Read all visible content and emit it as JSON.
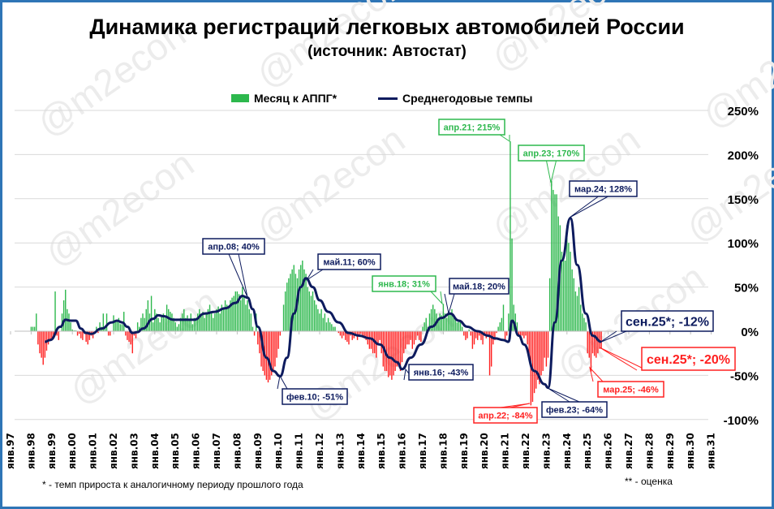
{
  "watermark": "@m2econ",
  "chart_data": {
    "type": "bar+line",
    "title": "Динамика регистраций легковых автомобилей России",
    "subtitle": "(источник: Автостат)",
    "legend": {
      "position": "top",
      "bar_label": "Месяц к АППГ*",
      "line_label": "Среднегодовые темпы"
    },
    "colors": {
      "positive_bar": "#2db84d",
      "negative_bar": "#ff2020",
      "line": "#0d1b5e",
      "grid": "#d9d9d9",
      "frame": "#2e75b6"
    },
    "y_axis": {
      "range": [
        -1.0,
        2.5
      ],
      "ticks": [
        "-100%",
        "-50%",
        "0%",
        "50%",
        "100%",
        "150%",
        "200%",
        "250%"
      ],
      "position": "right",
      "grid": true
    },
    "x_axis": {
      "ticks": [
        "янв.97",
        "янв.98",
        "янв.99",
        "янв.00",
        "янв.01",
        "янв.02",
        "янв.03",
        "янв.04",
        "янв.05",
        "янв.06",
        "янв.07",
        "янв.08",
        "янв.09",
        "янв.10",
        "янв.11",
        "янв.12",
        "янв.13",
        "янв.14",
        "янв.15",
        "янв.16",
        "янв.17",
        "янв.18",
        "янв.19",
        "янв.20",
        "янв.21",
        "янв.22",
        "янв.23",
        "янв.24",
        "янв.25",
        "янв.26",
        "янв.27",
        "янв.28",
        "янв.29",
        "янв.30",
        "янв.31"
      ]
    },
    "bars_monthly_pct": {
      "1998": [
        5,
        5,
        5,
        20,
        -15,
        -25,
        -30,
        -38,
        -30,
        -22,
        -15,
        -10
      ],
      "1999": [
        -8,
        -5,
        45,
        -5,
        -10,
        0,
        20,
        35,
        47,
        25,
        20,
        10
      ],
      "2000": [
        2,
        1,
        1,
        -5,
        -3,
        -8,
        -10,
        -3,
        -12,
        -15,
        -10,
        -5
      ],
      "2001": [
        -8,
        -2,
        5,
        -2,
        10,
        5,
        20,
        5,
        20,
        -5,
        -5,
        0
      ],
      "2002": [
        18,
        12,
        12,
        15,
        8,
        8,
        22,
        -5,
        -10,
        -12,
        -15,
        -25
      ],
      "2003": [
        -5,
        -8,
        10,
        5,
        15,
        20,
        15,
        25,
        35,
        20,
        40,
        10
      ],
      "2004": [
        25,
        20,
        15,
        10,
        18,
        20,
        15,
        30,
        25,
        22,
        20,
        15
      ],
      "2005": [
        10,
        5,
        8,
        15,
        20,
        25,
        15,
        18,
        12,
        20,
        8,
        15
      ],
      "2006": [
        15,
        20,
        25,
        18,
        22,
        15,
        20,
        25,
        30,
        22,
        15,
        20
      ],
      "2007": [
        25,
        28,
        20,
        30,
        25,
        35,
        30,
        28,
        35,
        38,
        40,
        45
      ],
      "2008": [
        45,
        42,
        35,
        50,
        40,
        30,
        35,
        25,
        20,
        5,
        -5,
        20
      ],
      "2009": [
        -15,
        -25,
        -40,
        -45,
        -50,
        -55,
        -58,
        -55,
        -50,
        -45,
        -40,
        -30
      ],
      "2010": [
        -20,
        -5,
        0,
        30,
        45,
        55,
        60,
        65,
        70,
        75,
        65,
        60
      ],
      "2011": [
        70,
        75,
        80,
        70,
        65,
        50,
        45,
        40,
        45,
        35,
        30,
        25
      ],
      "2012": [
        20,
        25,
        15,
        20,
        10,
        15,
        10,
        8,
        5,
        5,
        0,
        -2
      ],
      "2013": [
        -5,
        -8,
        -5,
        -10,
        -12,
        -15,
        -5,
        -10,
        -8,
        -5,
        -10,
        -5
      ],
      "2014": [
        -3,
        -5,
        -8,
        -10,
        -15,
        -20,
        -20,
        -25,
        -25,
        -30,
        -15,
        -10
      ],
      "2015": [
        -25,
        -40,
        -45,
        -45,
        -52,
        -50,
        -55,
        -50,
        -45,
        -40,
        -40,
        -45
      ],
      "2016": [
        -35,
        -25,
        -20,
        -15,
        -15,
        -10,
        -20,
        -15,
        -10,
        -5,
        -10,
        -12
      ],
      "2017": [
        5,
        10,
        15,
        5,
        20,
        25,
        30,
        25,
        20,
        15,
        20,
        18
      ],
      "2018": [
        31,
        20,
        15,
        22,
        20,
        25,
        18,
        15,
        10,
        12,
        10,
        5
      ],
      "2019": [
        -5,
        -10,
        -8,
        2,
        -5,
        -20,
        -15,
        -8,
        -10,
        -5,
        -10,
        -15
      ],
      "2020": [
        -5,
        -8,
        -5,
        -50,
        -40,
        -15,
        -10,
        -2,
        5,
        10,
        15,
        30
      ],
      "2021": [
        -10,
        -5,
        20,
        215,
        105,
        30,
        20,
        10,
        -5,
        -10,
        -5,
        -8
      ],
      "2022": [
        -5,
        -15,
        -30,
        -84,
        -80,
        -70,
        -65,
        -55,
        -60,
        -50,
        -45,
        -30
      ],
      "2023": [
        -40,
        -30,
        60,
        170,
        160,
        155,
        155,
        130,
        120,
        90,
        85,
        80
      ],
      "2024": [
        120,
        100,
        90,
        70,
        60,
        45,
        40,
        50,
        30,
        20,
        15,
        10
      ],
      "2025": [
        -25,
        -30,
        -46,
        -25,
        -28,
        -30,
        -25,
        -20,
        -20
      ]
    },
    "line_points_pct": [
      [
        "1998-09",
        -12
      ],
      [
        "1998-12",
        -10
      ],
      [
        "1999-06",
        5
      ],
      [
        "1999-09",
        13
      ],
      [
        "1999-12",
        12
      ],
      [
        "2000-03",
        12
      ],
      [
        "2000-06",
        3
      ],
      [
        "2000-09",
        -2
      ],
      [
        "2000-12",
        -3
      ],
      [
        "2001-06",
        3
      ],
      [
        "2001-12",
        10
      ],
      [
        "2002-03",
        12
      ],
      [
        "2002-06",
        10
      ],
      [
        "2002-09",
        5
      ],
      [
        "2002-12",
        -2
      ],
      [
        "2003-03",
        -1
      ],
      [
        "2003-06",
        3
      ],
      [
        "2003-12",
        14
      ],
      [
        "2004-03",
        18
      ],
      [
        "2004-06",
        17
      ],
      [
        "2004-12",
        13
      ],
      [
        "2005-06",
        13
      ],
      [
        "2005-12",
        13
      ],
      [
        "2006-06",
        20
      ],
      [
        "2006-12",
        22
      ],
      [
        "2007-06",
        26
      ],
      [
        "2007-12",
        32
      ],
      [
        "2008-04",
        40
      ],
      [
        "2008-07",
        38
      ],
      [
        "2008-10",
        25
      ],
      [
        "2009-01",
        5
      ],
      [
        "2009-06",
        -30
      ],
      [
        "2009-10",
        -45
      ],
      [
        "2010-02",
        -51
      ],
      [
        "2010-06",
        -30
      ],
      [
        "2010-10",
        20
      ],
      [
        "2011-02",
        50
      ],
      [
        "2011-05",
        60
      ],
      [
        "2011-09",
        50
      ],
      [
        "2012-01",
        35
      ],
      [
        "2012-06",
        22
      ],
      [
        "2012-12",
        10
      ],
      [
        "2013-06",
        -2
      ],
      [
        "2013-12",
        -5
      ],
      [
        "2014-06",
        -8
      ],
      [
        "2014-12",
        -15
      ],
      [
        "2015-06",
        -30
      ],
      [
        "2015-10",
        -35
      ],
      [
        "2016-01",
        -43
      ],
      [
        "2016-06",
        -30
      ],
      [
        "2016-12",
        -15
      ],
      [
        "2017-06",
        5
      ],
      [
        "2017-12",
        15
      ],
      [
        "2018-05",
        20
      ],
      [
        "2018-10",
        12
      ],
      [
        "2019-03",
        5
      ],
      [
        "2019-09",
        0
      ],
      [
        "2020-03",
        -5
      ],
      [
        "2020-07",
        -8
      ],
      [
        "2020-12",
        -10
      ],
      [
        "2021-03",
        -12
      ],
      [
        "2021-05",
        12
      ],
      [
        "2021-09",
        -5
      ],
      [
        "2021-12",
        -15
      ],
      [
        "2022-06",
        -45
      ],
      [
        "2022-12",
        -60
      ],
      [
        "2023-02",
        -64
      ],
      [
        "2023-06",
        10
      ],
      [
        "2023-10",
        80
      ],
      [
        "2024-03",
        128
      ],
      [
        "2024-07",
        75
      ],
      [
        "2024-12",
        20
      ],
      [
        "2025-04",
        -5
      ],
      [
        "2025-09",
        -12
      ]
    ],
    "annotations": [
      {
        "text": "апр.08; 40%",
        "color": "#0d1b5e"
      },
      {
        "text": "май.11; 60%",
        "color": "#0d1b5e"
      },
      {
        "text": "фев.10; -51%",
        "color": "#0d1b5e"
      },
      {
        "text": "янв.18; 31%",
        "color": "#2db84d"
      },
      {
        "text": "май.18; 20%",
        "color": "#0d1b5e"
      },
      {
        "text": "янв.16; -43%",
        "color": "#0d1b5e"
      },
      {
        "text": "апр.21; 215%",
        "color": "#2db84d"
      },
      {
        "text": "апр.23; 170%",
        "color": "#2db84d"
      },
      {
        "text": "мар.24; 128%",
        "color": "#0d1b5e"
      },
      {
        "text": "сен.25*; -12%",
        "color": "#0d1b5e"
      },
      {
        "text": "сен.25*; -20%",
        "color": "#ff2020"
      },
      {
        "text": "мар.25; -46%",
        "color": "#ff2020"
      },
      {
        "text": "апр.22; -84%",
        "color": "#ff2020"
      },
      {
        "text": "фев.23; -64%",
        "color": "#0d1b5e"
      }
    ]
  },
  "footnotes": {
    "left": "* - темп прироста к аналогичному периоду прошлого года",
    "right": "** - оценка"
  }
}
